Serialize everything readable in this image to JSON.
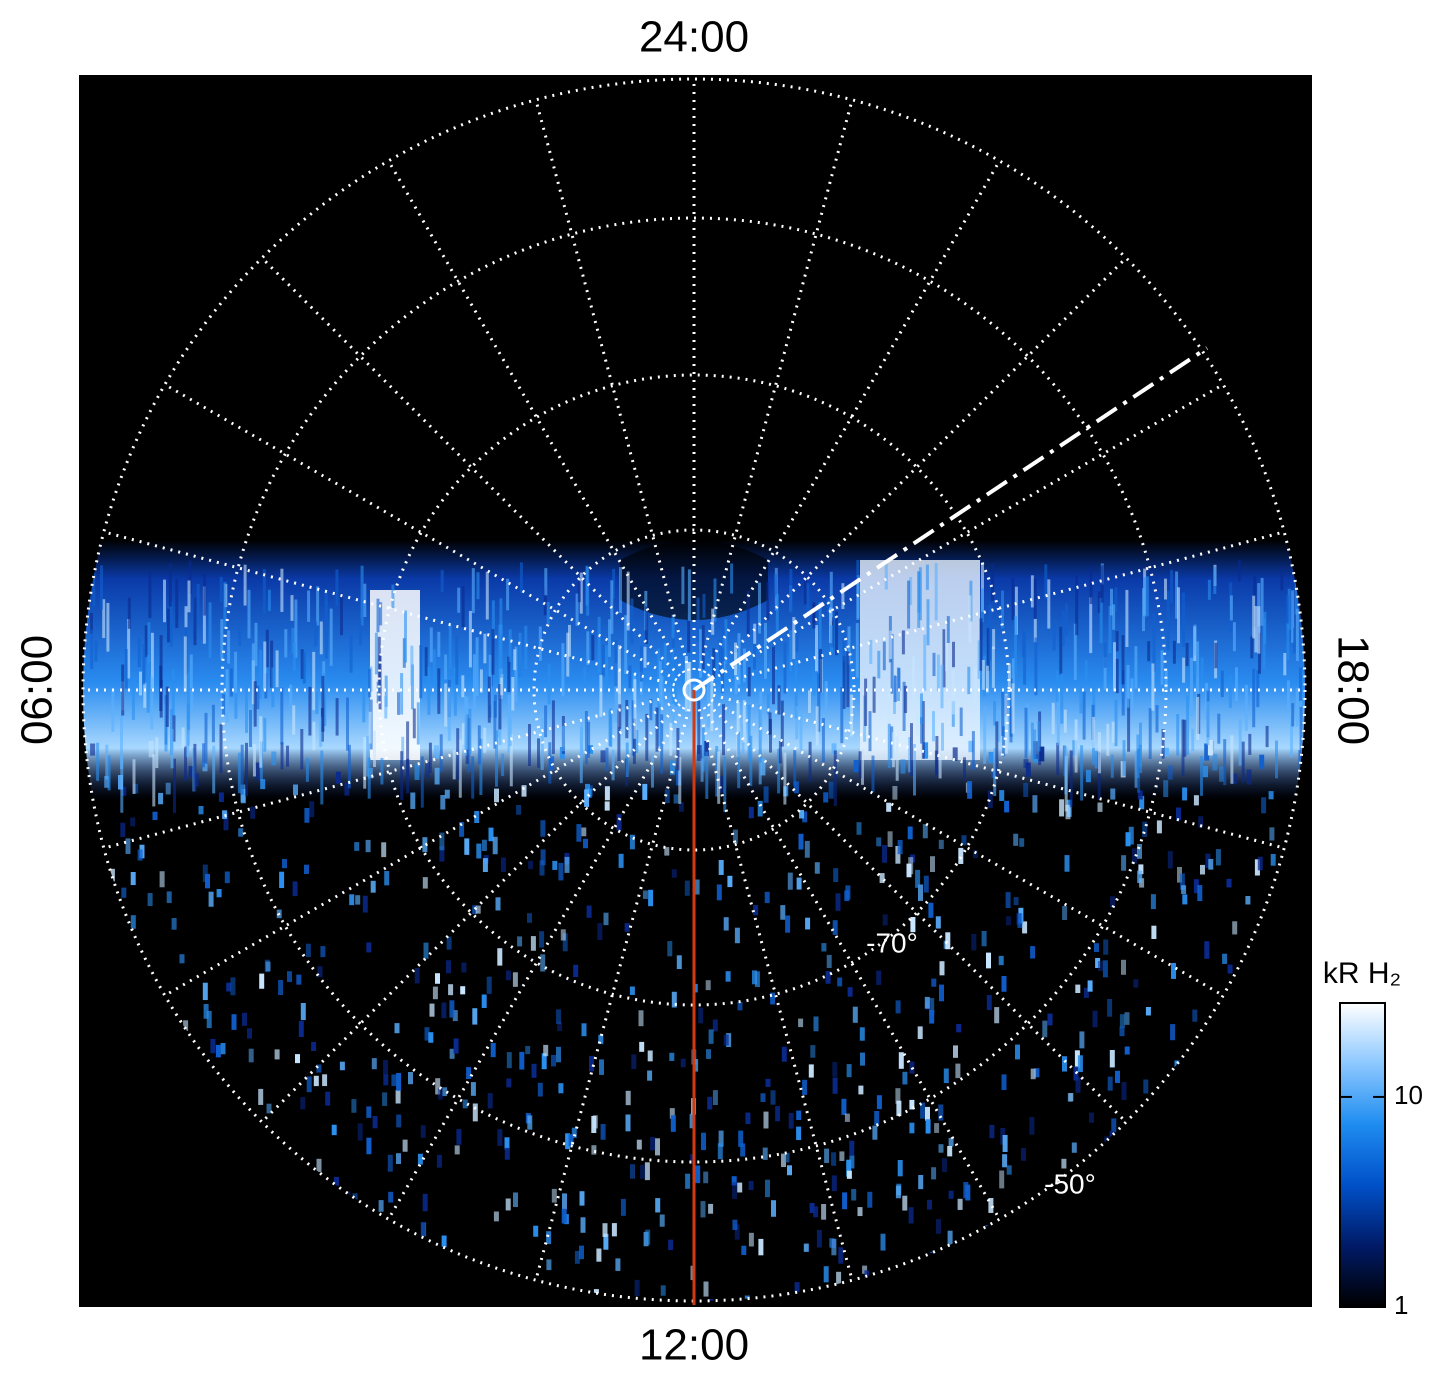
{
  "chart_data": {
    "type": "polar-image",
    "hour_labels": {
      "top": "24:00",
      "left": "06:00",
      "right": "18:00",
      "bottom": "12:00"
    },
    "latitude_labels": [
      "-70°",
      "-50°"
    ],
    "colorbar": {
      "title": "kR H₂",
      "log": true,
      "lim": [
        1,
        28
      ],
      "ticks": [
        1,
        10
      ],
      "colors": [
        "#000000",
        "#001a66",
        "#0050c8",
        "#1e8cf0",
        "#8cc8ff",
        "#ffffff"
      ]
    }
  }
}
